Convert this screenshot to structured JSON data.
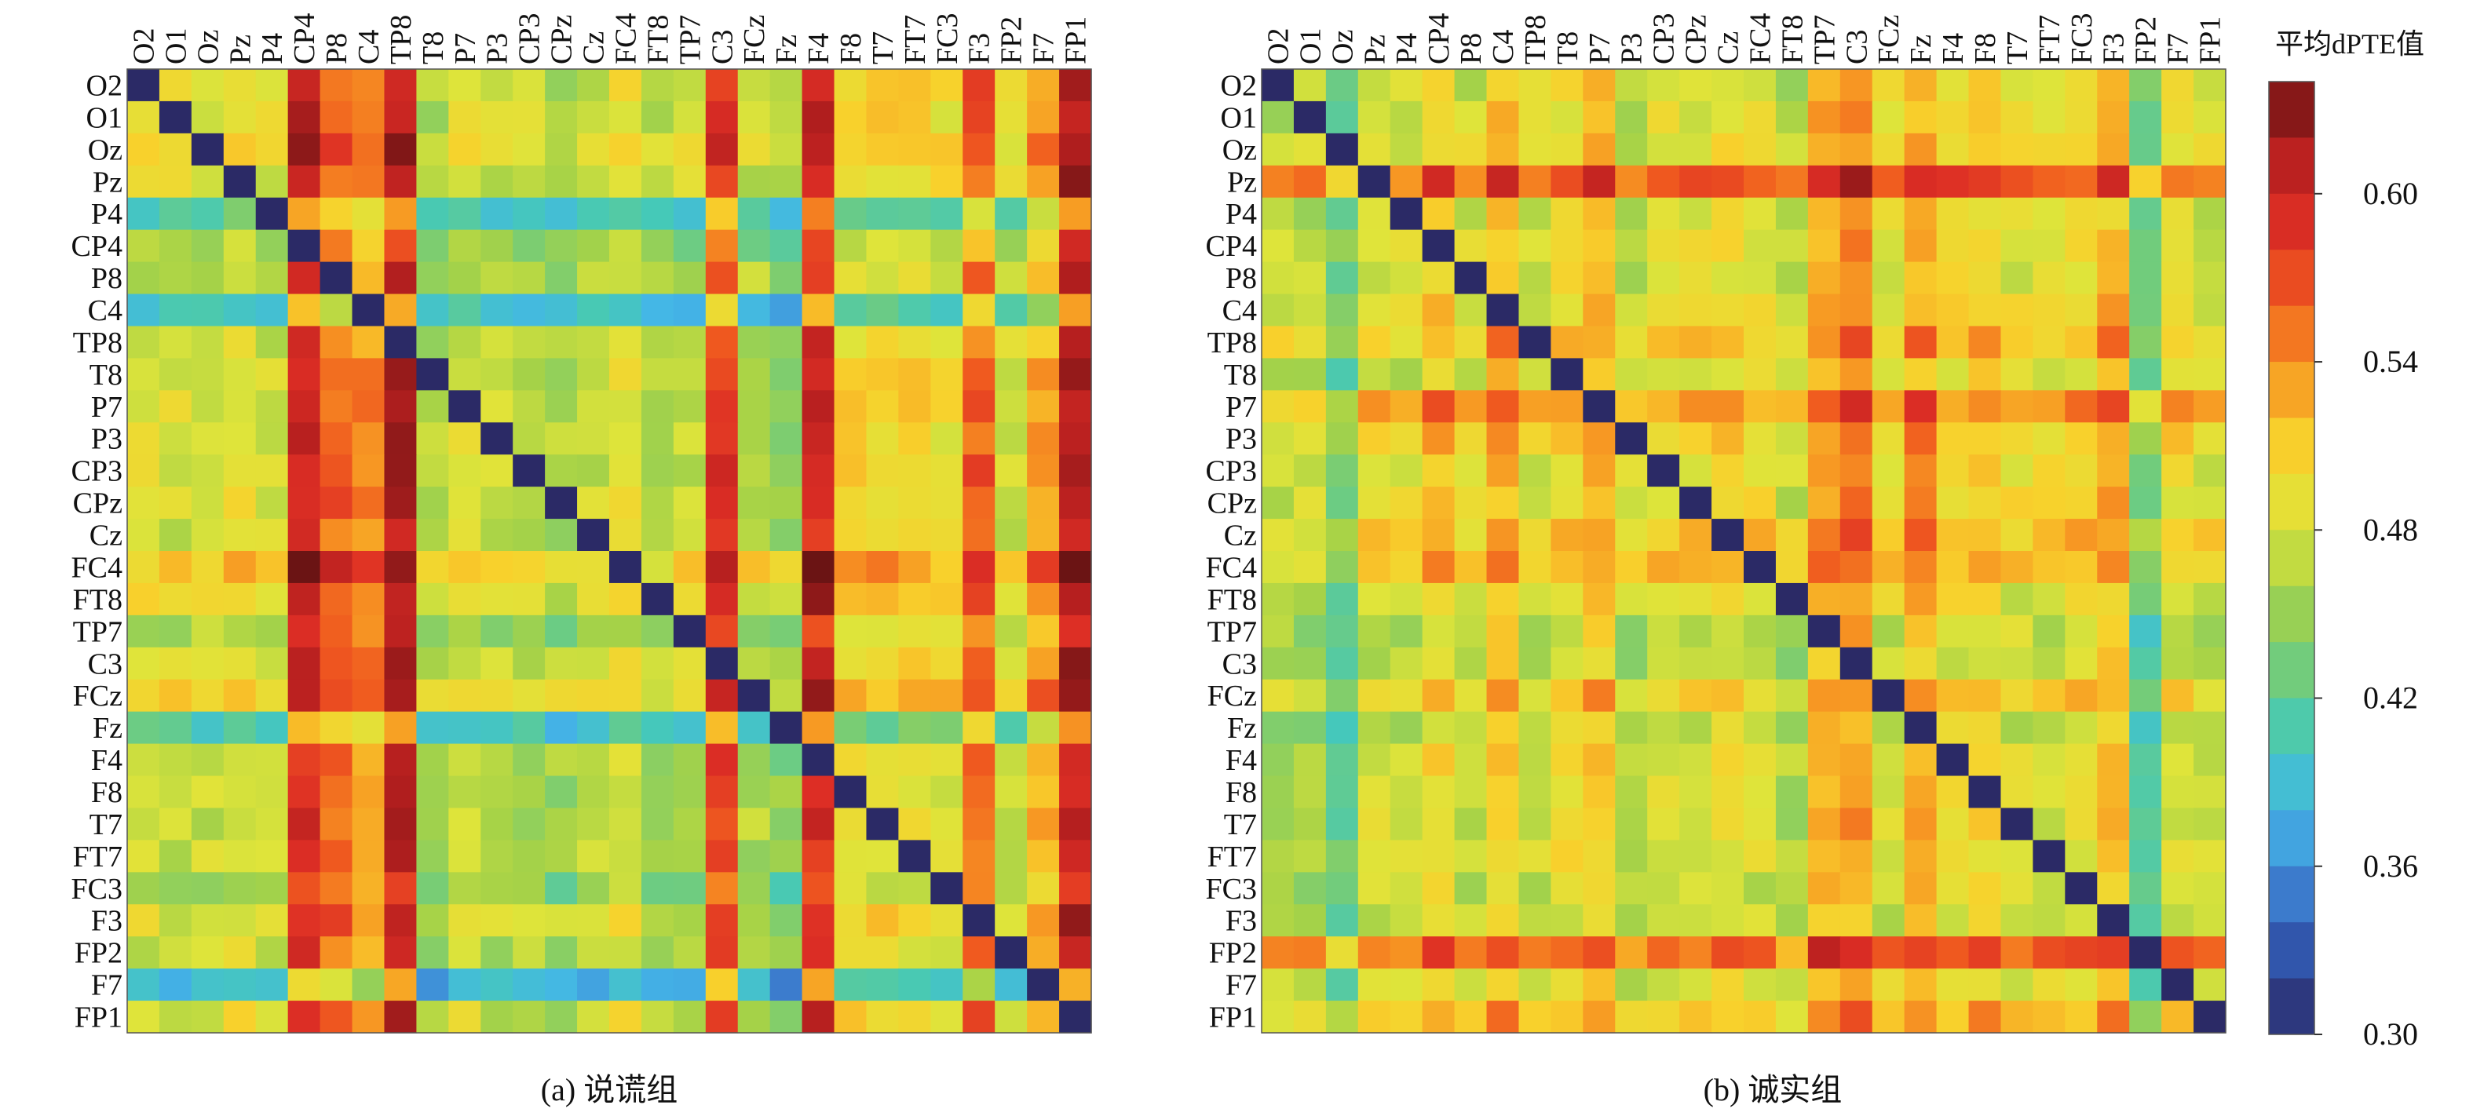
{
  "figure": {
    "colorbar_title": "平均dPTE值",
    "colormap": [
      "#2b2a66",
      "#2f4fa6",
      "#3d7fd0",
      "#44b6e8",
      "#45c9b8",
      "#73cc7a",
      "#a5d248",
      "#dfe43a",
      "#f8d12c",
      "#f79a23",
      "#f05b1f",
      "#dd2e25",
      "#b51f1f",
      "#6b1414"
    ]
  },
  "chart_data": [
    {
      "type": "heatmap",
      "caption": "(a) 说谎组",
      "channels": [
        "O2",
        "O1",
        "Oz",
        "Pz",
        "P4",
        "CP4",
        "P8",
        "C4",
        "TP8",
        "T8",
        "P7",
        "P3",
        "CP3",
        "CPz",
        "Cz",
        "FC4",
        "FT8",
        "TP7",
        "C3",
        "FCz",
        "Fz",
        "F4",
        "F8",
        "T7",
        "FT7",
        "FC3",
        "F3",
        "FP2",
        "F7",
        "FP1"
      ],
      "row_means": [
        0.5,
        0.5,
        0.51,
        0.5,
        0.43,
        0.47,
        0.49,
        0.42,
        0.49,
        0.5,
        0.5,
        0.5,
        0.5,
        0.5,
        0.49,
        0.53,
        0.51,
        0.48,
        0.5,
        0.52,
        0.43,
        0.49,
        0.49,
        0.49,
        0.49,
        0.47,
        0.5,
        0.49,
        0.41,
        0.5
      ],
      "col_means": [
        0.48,
        0.48,
        0.48,
        0.49,
        0.48,
        0.6,
        0.56,
        0.54,
        0.61,
        0.46,
        0.48,
        0.47,
        0.47,
        0.46,
        0.47,
        0.49,
        0.46,
        0.47,
        0.58,
        0.47,
        0.45,
        0.6,
        0.5,
        0.5,
        0.5,
        0.49,
        0.56,
        0.48,
        0.53,
        0.61
      ],
      "diagonal_value": 0.3,
      "color_range": [
        0.3,
        0.64
      ]
    },
    {
      "type": "heatmap",
      "caption": "(b) 诚实组",
      "channels": [
        "O2",
        "O1",
        "Oz",
        "Pz",
        "P4",
        "CP4",
        "P8",
        "C4",
        "TP8",
        "T8",
        "P7",
        "P3",
        "CP3",
        "CPz",
        "Cz",
        "FC4",
        "FT8",
        "TP7",
        "C3",
        "FCz",
        "Fz",
        "F4",
        "F8",
        "T7",
        "FT7",
        "FC3",
        "F3",
        "FP2",
        "F7",
        "FP1"
      ],
      "row_means": [
        0.48,
        0.48,
        0.49,
        0.56,
        0.48,
        0.49,
        0.48,
        0.49,
        0.51,
        0.48,
        0.53,
        0.5,
        0.49,
        0.49,
        0.51,
        0.51,
        0.48,
        0.47,
        0.47,
        0.5,
        0.47,
        0.48,
        0.48,
        0.48,
        0.48,
        0.47,
        0.47,
        0.55,
        0.48,
        0.51
      ],
      "col_means": [
        0.48,
        0.48,
        0.44,
        0.5,
        0.49,
        0.52,
        0.49,
        0.53,
        0.49,
        0.51,
        0.53,
        0.48,
        0.5,
        0.5,
        0.51,
        0.5,
        0.48,
        0.54,
        0.55,
        0.5,
        0.54,
        0.51,
        0.52,
        0.5,
        0.5,
        0.51,
        0.53,
        0.44,
        0.5,
        0.49
      ],
      "diagonal_value": 0.3,
      "color_range": [
        0.3,
        0.64
      ]
    }
  ],
  "colorbar": {
    "min": 0.3,
    "max": 0.64,
    "ticks": [
      "0.60",
      "0.54",
      "0.48",
      "0.42",
      "0.36",
      "0.30"
    ],
    "tick_values": [
      0.6,
      0.54,
      0.48,
      0.42,
      0.36,
      0.3
    ]
  }
}
